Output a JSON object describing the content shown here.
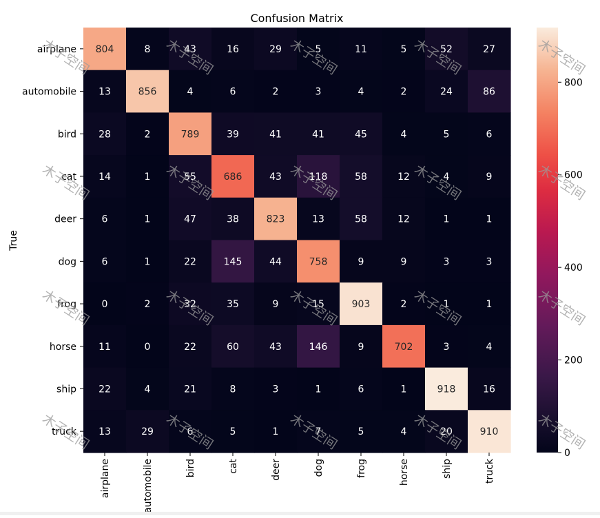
{
  "watermark": {
    "text": "木子空间"
  },
  "chart_data": {
    "type": "heatmap",
    "title": "Confusion Matrix",
    "xlabel": "",
    "ylabel": "True",
    "x_categories": [
      "airplane",
      "automobile",
      "bird",
      "cat",
      "deer",
      "dog",
      "frog",
      "horse",
      "ship",
      "truck"
    ],
    "y_categories": [
      "airplane",
      "automobile",
      "bird",
      "cat",
      "deer",
      "dog",
      "frog",
      "horse",
      "ship",
      "truck"
    ],
    "values": [
      [
        804,
        8,
        43,
        16,
        29,
        5,
        11,
        5,
        52,
        27
      ],
      [
        13,
        856,
        4,
        6,
        2,
        3,
        4,
        2,
        24,
        86
      ],
      [
        28,
        2,
        789,
        39,
        41,
        41,
        45,
        4,
        5,
        6
      ],
      [
        14,
        1,
        55,
        686,
        43,
        118,
        58,
        12,
        4,
        9
      ],
      [
        6,
        1,
        47,
        38,
        823,
        13,
        58,
        12,
        1,
        1
      ],
      [
        6,
        1,
        22,
        145,
        44,
        758,
        9,
        9,
        3,
        3
      ],
      [
        0,
        2,
        32,
        35,
        9,
        15,
        903,
        2,
        1,
        1
      ],
      [
        11,
        0,
        22,
        60,
        43,
        146,
        9,
        702,
        3,
        4
      ],
      [
        22,
        4,
        21,
        8,
        3,
        1,
        6,
        1,
        918,
        16
      ],
      [
        13,
        29,
        6,
        5,
        1,
        7,
        5,
        4,
        20,
        910
      ]
    ],
    "vmin": 0,
    "vmax": 918,
    "colormap": "rocket",
    "colorbar": {
      "ticks": [
        0,
        200,
        400,
        600,
        800
      ],
      "tick_labels": [
        "0",
        "200",
        "400",
        "600",
        "800"
      ]
    },
    "grid": false,
    "annotations": "cell counts"
  }
}
